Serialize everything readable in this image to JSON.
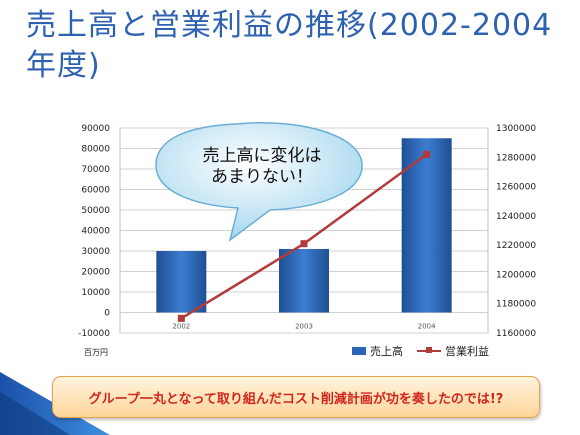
{
  "slide": {
    "title": "売上高と営業利益の推移(2002-2004年度)",
    "callout": "売上高に変化は\nあまりない！",
    "banner": "グループ一丸となって取り組んだコスト削減計画が功を奏したのでは!?"
  },
  "chart_data": {
    "type": "bar",
    "categories": [
      "2002",
      "2003",
      "2004"
    ],
    "series": [
      {
        "name": "売上高",
        "type": "bar",
        "axis": "left",
        "values": [
          30000,
          31000,
          85000
        ],
        "color": "#2a66b8"
      },
      {
        "name": "営業利益",
        "type": "line",
        "axis": "right",
        "values": [
          1170000,
          1221000,
          1282000
        ],
        "color": "#b23a3a"
      }
    ],
    "y_left": {
      "min": -10000,
      "max": 90000,
      "ticks": [
        "-10000",
        "0",
        "10000",
        "20000",
        "30000",
        "40000",
        "50000",
        "60000",
        "70000",
        "80000",
        "90000"
      ]
    },
    "y_right": {
      "min": 1160000,
      "max": 1300000,
      "ticks": [
        "1160000",
        "1180000",
        "1200000",
        "1220000",
        "1240000",
        "1260000",
        "1280000",
        "1300000"
      ]
    },
    "unit_label": "百万円",
    "grid": true,
    "legend": "bottom-right"
  }
}
